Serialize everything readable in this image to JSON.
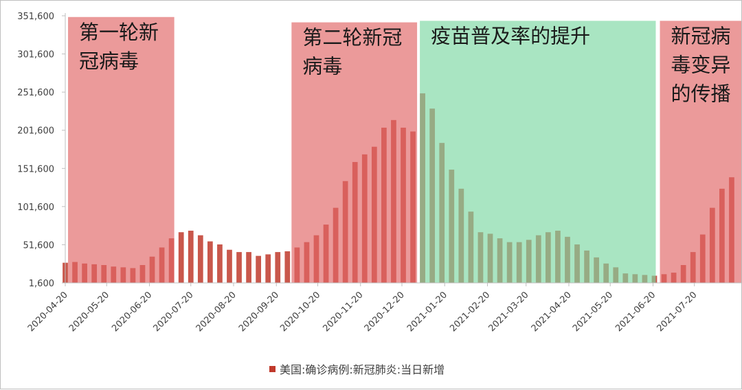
{
  "chart_data": {
    "type": "bar",
    "series": [
      {
        "name": "美国:确诊病例:新冠肺炎:当日新增",
        "color": "#c0392b",
        "points": [
          [
            "2020-04-20",
            28000
          ],
          [
            "2020-04-27",
            29000
          ],
          [
            "2020-05-04",
            27000
          ],
          [
            "2020-05-11",
            26000
          ],
          [
            "2020-05-18",
            25000
          ],
          [
            "2020-05-25",
            23000
          ],
          [
            "2020-06-01",
            22000
          ],
          [
            "2020-06-08",
            21000
          ],
          [
            "2020-06-15",
            25000
          ],
          [
            "2020-06-22",
            36000
          ],
          [
            "2020-06-29",
            48000
          ],
          [
            "2020-07-06",
            60000
          ],
          [
            "2020-07-13",
            68000
          ],
          [
            "2020-07-20",
            70000
          ],
          [
            "2020-07-27",
            64000
          ],
          [
            "2020-08-03",
            56000
          ],
          [
            "2020-08-10",
            52000
          ],
          [
            "2020-08-17",
            45000
          ],
          [
            "2020-08-24",
            42000
          ],
          [
            "2020-08-31",
            42000
          ],
          [
            "2020-09-07",
            37000
          ],
          [
            "2020-09-14",
            39000
          ],
          [
            "2020-09-21",
            42000
          ],
          [
            "2020-09-28",
            43000
          ],
          [
            "2020-10-05",
            48000
          ],
          [
            "2020-10-12",
            55000
          ],
          [
            "2020-10-19",
            64000
          ],
          [
            "2020-10-26",
            78000
          ],
          [
            "2020-11-02",
            100000
          ],
          [
            "2020-11-09",
            135000
          ],
          [
            "2020-11-16",
            160000
          ],
          [
            "2020-11-23",
            170000
          ],
          [
            "2020-11-30",
            180000
          ],
          [
            "2020-12-07",
            205000
          ],
          [
            "2020-12-14",
            215000
          ],
          [
            "2020-12-21",
            205000
          ],
          [
            "2020-12-28",
            200000
          ],
          [
            "2021-01-04",
            250000
          ],
          [
            "2021-01-11",
            230000
          ],
          [
            "2021-01-18",
            185000
          ],
          [
            "2021-01-25",
            150000
          ],
          [
            "2021-02-01",
            125000
          ],
          [
            "2021-02-08",
            95000
          ],
          [
            "2021-02-15",
            68000
          ],
          [
            "2021-02-22",
            66000
          ],
          [
            "2021-03-01",
            60000
          ],
          [
            "2021-03-08",
            55000
          ],
          [
            "2021-03-15",
            55000
          ],
          [
            "2021-03-22",
            58000
          ],
          [
            "2021-03-29",
            64000
          ],
          [
            "2021-04-05",
            68000
          ],
          [
            "2021-04-12",
            70000
          ],
          [
            "2021-04-19",
            62000
          ],
          [
            "2021-04-26",
            52000
          ],
          [
            "2021-05-03",
            44000
          ],
          [
            "2021-05-10",
            35000
          ],
          [
            "2021-05-17",
            27000
          ],
          [
            "2021-05-24",
            22000
          ],
          [
            "2021-05-31",
            14000
          ],
          [
            "2021-06-07",
            13000
          ],
          [
            "2021-06-14",
            12000
          ],
          [
            "2021-06-21",
            11000
          ],
          [
            "2021-06-28",
            13000
          ],
          [
            "2021-07-05",
            15000
          ],
          [
            "2021-07-12",
            25000
          ],
          [
            "2021-07-19",
            42000
          ],
          [
            "2021-07-26",
            65000
          ],
          [
            "2021-08-02",
            100000
          ],
          [
            "2021-08-09",
            125000
          ],
          [
            "2021-08-16",
            140000
          ]
        ]
      }
    ],
    "y_ticks": [
      "1,600",
      "51,600",
      "101,600",
      "151,600",
      "201,600",
      "251,600",
      "301,600",
      "351,600"
    ],
    "y_tick_values": [
      1600,
      51600,
      101600,
      151600,
      201600,
      251600,
      301600,
      351600
    ],
    "ylim": [
      1600,
      351600
    ],
    "x_ticks": [
      "2020-04-20",
      "2020-05-20",
      "2020-06-20",
      "2020-07-20",
      "2020-08-20",
      "2020-09-20",
      "2020-10-20",
      "2020-11-20",
      "2020-12-20",
      "2021-01-20",
      "2021-02-20",
      "2021-03-20",
      "2021-04-20",
      "2021-05-20",
      "2021-06-20",
      "2021-07-20"
    ],
    "xlim": [
      "2020-04-20",
      "2021-08-23"
    ],
    "legend_position": "bottom",
    "grid": false,
    "periods": [
      {
        "label_lines": [
          "第一轮新",
          "冠病毒"
        ],
        "start": "2020-04-22",
        "end": "2020-07-08",
        "top_value": 350000,
        "bottom_value": 1600,
        "color": "#e06666"
      },
      {
        "label_lines": [
          "第二轮新冠",
          "病毒"
        ],
        "start": "2020-10-01",
        "end": "2020-12-31",
        "top_value": 343000,
        "bottom_value": 1600,
        "color": "#e06666"
      },
      {
        "label_lines": [
          "疫苗普及率的提升"
        ],
        "start": "2021-01-02",
        "end": "2021-06-22",
        "top_value": 345000,
        "bottom_value": 1600,
        "color": "#7dd8a2"
      },
      {
        "label_lines": [
          "新冠病",
          "毒变异",
          "的传播"
        ],
        "start": "2021-06-25",
        "end": "2021-08-31",
        "top_value": 345000,
        "bottom_value": 1600,
        "color": "#e06666"
      }
    ]
  }
}
